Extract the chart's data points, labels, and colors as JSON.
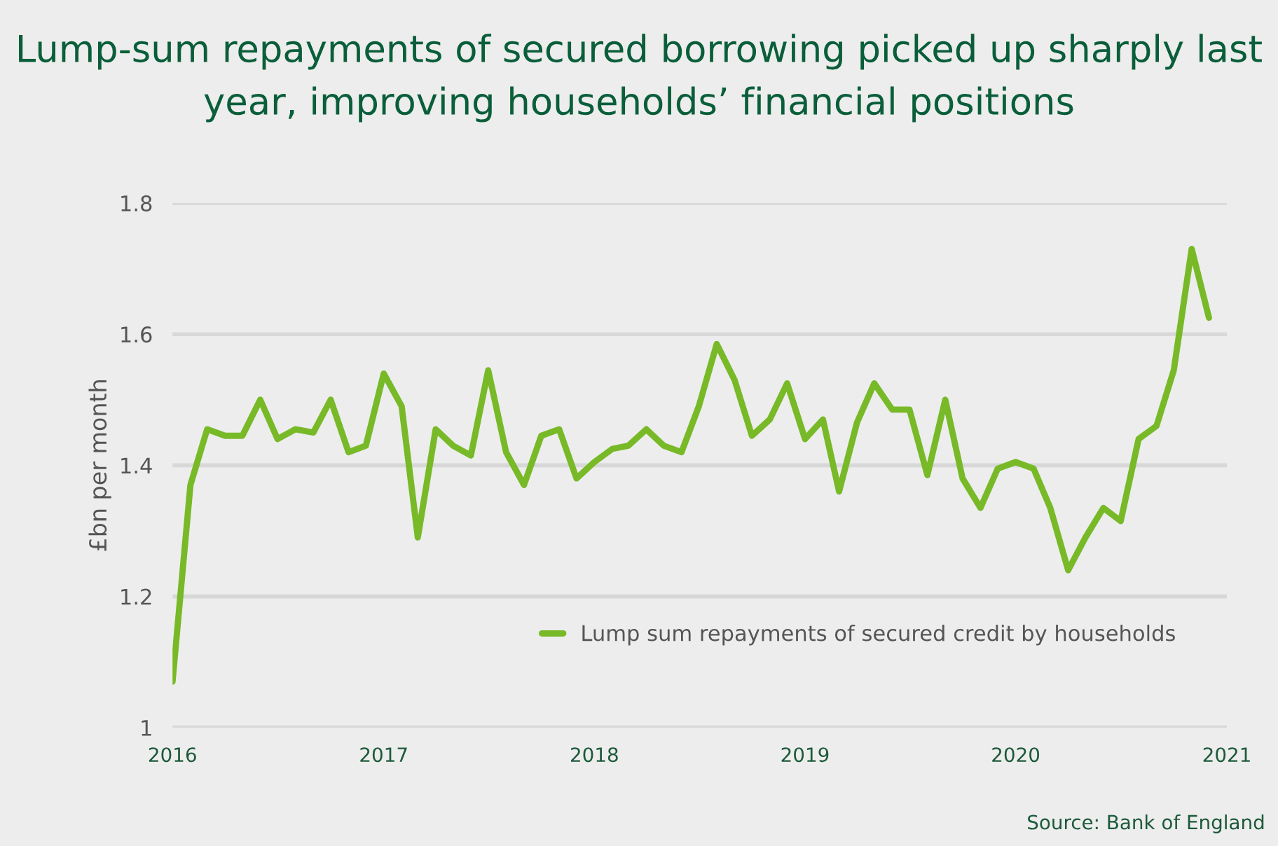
{
  "chart_data": {
    "type": "line",
    "title": "Lump-sum repayments of secured borrowing picked up sharply last year, improving households’ financial positions",
    "ylabel": "£bn per month",
    "annotations": [
      "Source: Bank of England"
    ],
    "x": [
      "2016-01",
      "2016-02",
      "2016-03",
      "2016-04",
      "2016-05",
      "2016-06",
      "2016-07",
      "2016-08",
      "2016-09",
      "2016-10",
      "2016-11",
      "2016-12",
      "2017-01",
      "2017-02",
      "2017-03",
      "2017-04",
      "2017-05",
      "2017-06",
      "2017-07",
      "2017-08",
      "2017-09",
      "2017-10",
      "2017-11",
      "2017-12",
      "2018-01",
      "2018-02",
      "2018-03",
      "2018-04",
      "2018-05",
      "2018-06",
      "2018-07",
      "2018-08",
      "2018-09",
      "2018-10",
      "2018-11",
      "2018-12",
      "2019-01",
      "2019-02",
      "2019-03",
      "2019-04",
      "2019-05",
      "2019-06",
      "2019-07",
      "2019-08",
      "2019-09",
      "2019-10",
      "2019-11",
      "2019-12",
      "2020-01",
      "2020-02",
      "2020-03",
      "2020-04",
      "2020-05",
      "2020-06",
      "2020-07",
      "2020-08",
      "2020-09",
      "2020-10",
      "2020-11",
      "2020-12"
    ],
    "series": [
      {
        "name": "Lump sum repayments of secured credit by households",
        "color": "#78b928",
        "values": [
          1.07,
          1.37,
          1.455,
          1.445,
          1.445,
          1.5,
          1.44,
          1.455,
          1.45,
          1.5,
          1.42,
          1.43,
          1.54,
          1.49,
          1.29,
          1.455,
          1.43,
          1.415,
          1.545,
          1.42,
          1.37,
          1.445,
          1.455,
          1.38,
          1.405,
          1.425,
          1.43,
          1.455,
          1.43,
          1.42,
          1.49,
          1.585,
          1.53,
          1.445,
          1.47,
          1.525,
          1.44,
          1.47,
          1.36,
          1.465,
          1.525,
          1.485,
          1.485,
          1.385,
          1.5,
          1.38,
          1.335,
          1.395,
          1.405,
          1.395,
          1.335,
          1.24,
          1.29,
          1.335,
          1.315,
          1.44,
          1.46,
          1.545,
          1.73,
          1.625
        ]
      }
    ],
    "xlim": [
      "2016-01",
      "2021-01"
    ],
    "xticks": [
      {
        "value": "2016-01",
        "label": "2016"
      },
      {
        "value": "2017-01",
        "label": "2017"
      },
      {
        "value": "2018-01",
        "label": "2018"
      },
      {
        "value": "2019-01",
        "label": "2019"
      },
      {
        "value": "2020-01",
        "label": "2020"
      },
      {
        "value": "2021-01",
        "label": "2021"
      }
    ],
    "ylim": [
      1,
      1.8
    ],
    "yticks": [
      1,
      1.2,
      1.4,
      1.6,
      1.8
    ],
    "grid": "y",
    "legend": "bottom right",
    "line_style": "solid",
    "marker": "none"
  }
}
